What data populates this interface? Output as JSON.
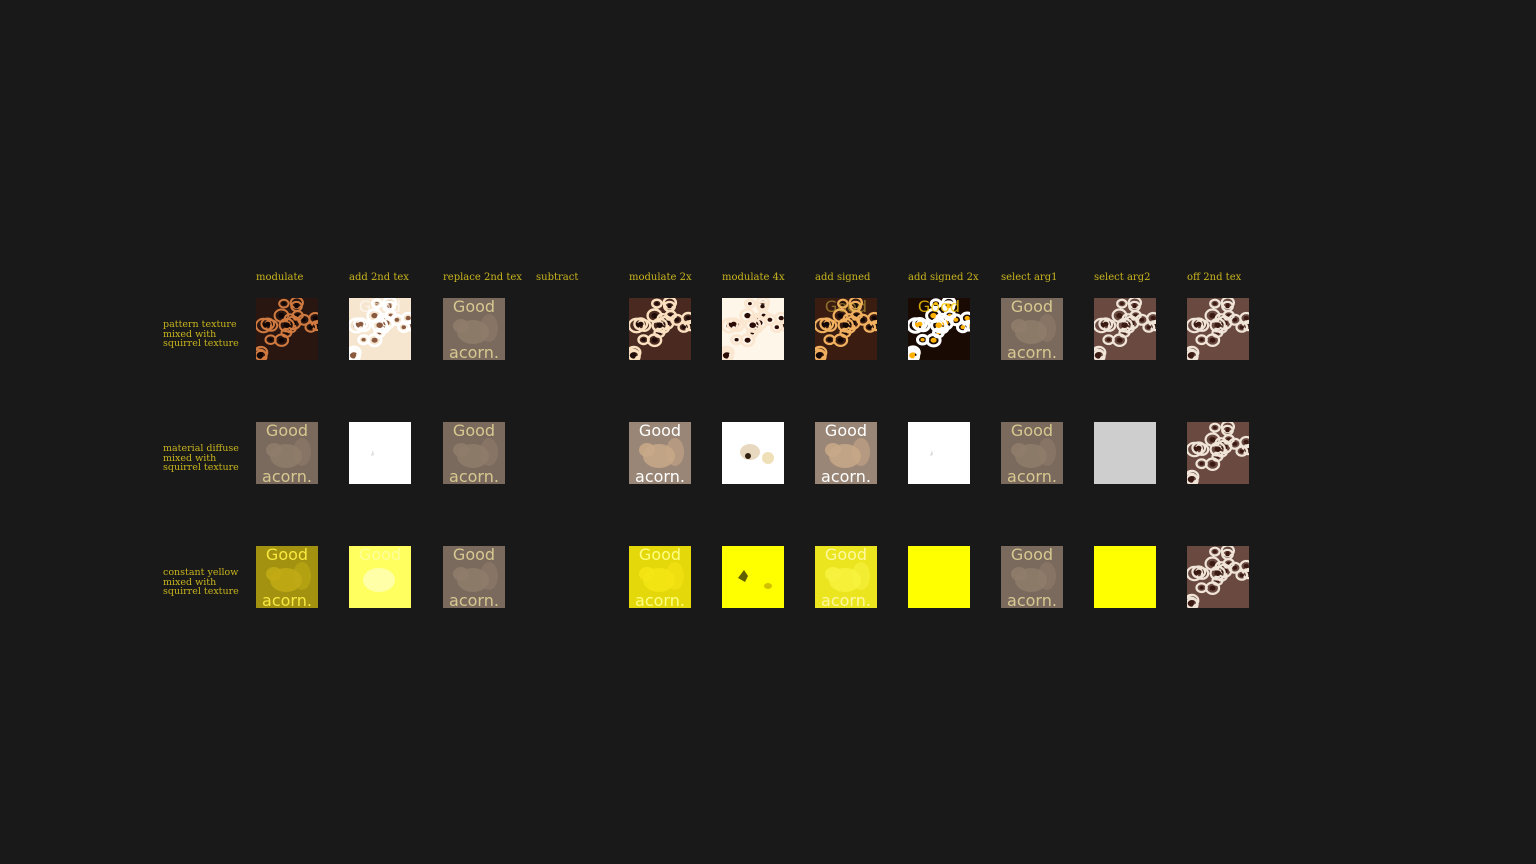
{
  "columns": [
    "modulate",
    "add 2nd tex",
    "replace 2nd tex",
    "subtract",
    "modulate 2x",
    "modulate 4x",
    "add signed",
    "add signed 2x",
    "select arg1",
    "select arg2",
    "off 2nd tex"
  ],
  "rows": [
    {
      "lines": [
        "pattern texture",
        "mixed with",
        "squirrel texture"
      ]
    },
    {
      "lines": [
        "material diffuse",
        "mixed with",
        "squirrel texture"
      ]
    },
    {
      "lines": [
        "constant yellow",
        "mixed with",
        "squirrel texture"
      ]
    }
  ],
  "texture_text": {
    "top": "Good",
    "bottom": "acorn."
  },
  "colors": {
    "background": "#191919",
    "label": "#c8b41e",
    "yellow": "#ffff00",
    "white": "#ffffff",
    "gray": "#cecece"
  },
  "tiles": [
    [
      "pattern-dark",
      "pattern-bright-text",
      "squirrel",
      "empty",
      "pattern-mid",
      "pattern-bright",
      "pattern-dark-text",
      "pattern-contrast-text",
      "squirrel",
      "pattern",
      "pattern"
    ],
    [
      "squirrel",
      "white-faint",
      "squirrel",
      "empty",
      "squirrel-bright",
      "white-squirrel",
      "squirrel-bright",
      "white-faint",
      "squirrel",
      "gray",
      "pattern"
    ],
    [
      "squirrel-yellow",
      "yellow-light",
      "squirrel",
      "empty",
      "squirrel-yellow-bright",
      "yellow-squirrel",
      "squirrel-yellow-light",
      "yellow",
      "squirrel",
      "yellow",
      "pattern"
    ]
  ]
}
